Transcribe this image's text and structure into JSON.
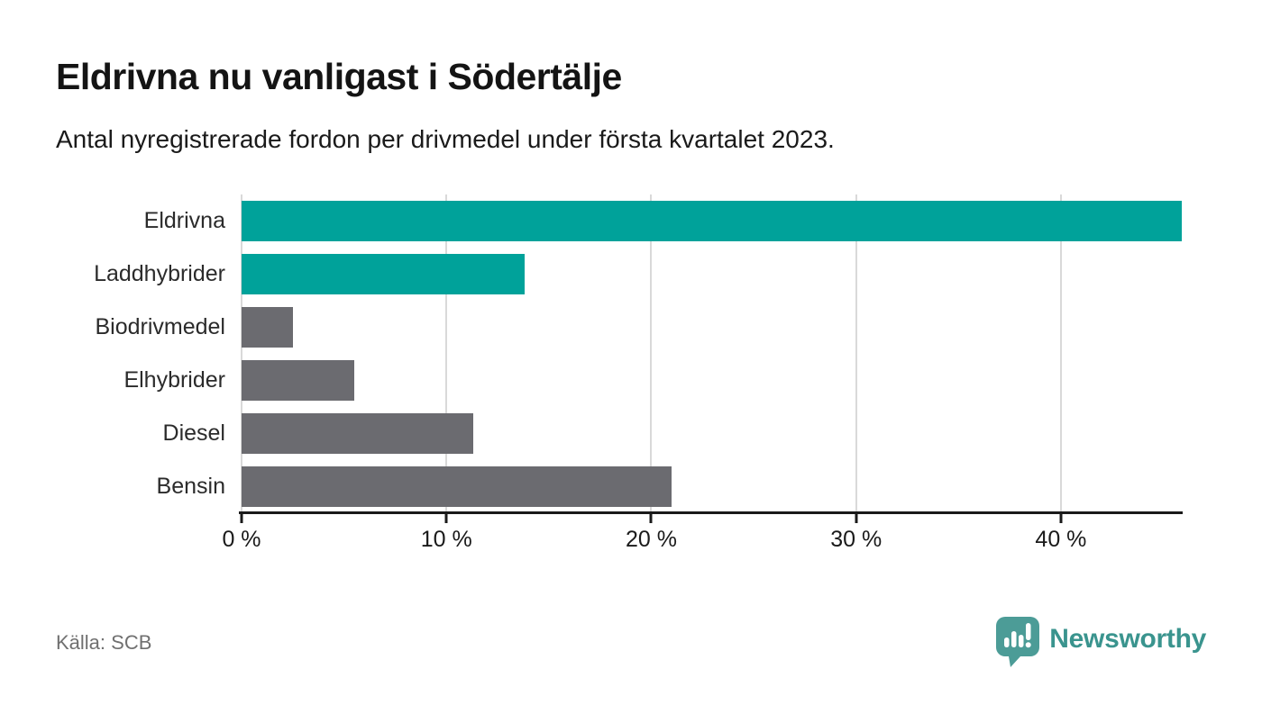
{
  "header": {
    "title": "Eldrivna nu vanligast i Södertälje",
    "subtitle": "Antal nyregistrerade fordon per drivmedel under första kvartalet 2023."
  },
  "chart_data": {
    "type": "bar",
    "orientation": "horizontal",
    "title": "Eldrivna nu vanligast i Södertälje",
    "subtitle": "Antal nyregistrerade fordon per drivmedel under första kvartalet 2023.",
    "categories": [
      "Eldrivna",
      "Laddhybrider",
      "Biodrivmedel",
      "Elhybrider",
      "Diesel",
      "Bensin"
    ],
    "values": [
      45.9,
      13.8,
      2.5,
      5.5,
      11.3,
      21.0
    ],
    "unit": "%",
    "bar_colors": [
      "#00a29a",
      "#00a29a",
      "#6b6b70",
      "#6b6b70",
      "#6b6b70",
      "#6b6b70"
    ],
    "highlight_color": "#00a29a",
    "base_color": "#6b6b70",
    "x_ticks": [
      0,
      10,
      20,
      30,
      40
    ],
    "x_tick_labels": [
      "0 %",
      "10 %",
      "20 %",
      "30 %",
      "40 %"
    ],
    "xlim": [
      0,
      45.9
    ],
    "grid": "vertical",
    "gridline_color": "#d9d9d9",
    "legend": "none"
  },
  "footer": {
    "source": "Källa: SCB",
    "brand": "Newsworthy"
  }
}
